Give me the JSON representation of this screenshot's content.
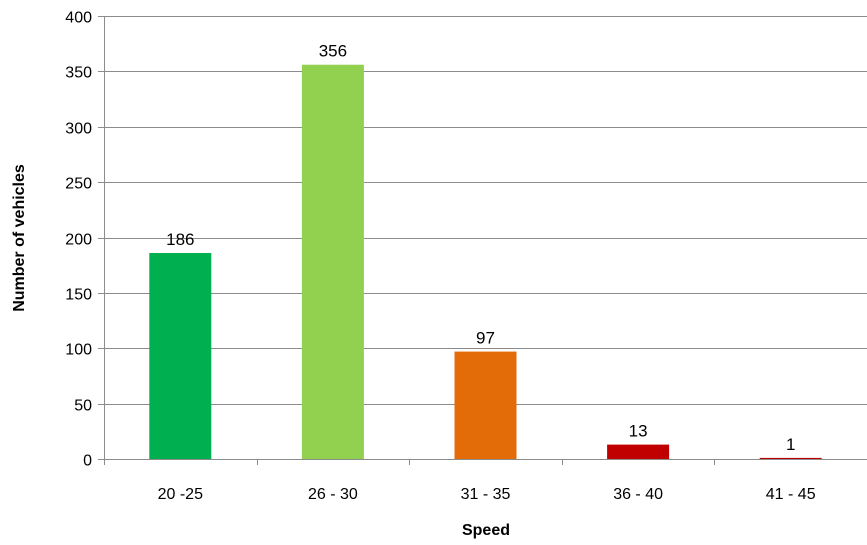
{
  "chart_data": {
    "type": "bar",
    "categories": [
      "20 -25",
      "26 - 30",
      "31 - 35",
      "36 - 40",
      "41 - 45"
    ],
    "values": [
      186,
      356,
      97,
      13,
      1
    ],
    "data_labels": [
      "186",
      "356",
      "97",
      "13",
      "1"
    ],
    "bar_colors": [
      "#00b050",
      "#92d050",
      "#e36c09",
      "#c00000",
      "#c00000"
    ],
    "xlabel": "Speed",
    "ylabel": "Number of vehicles",
    "ylim": [
      0,
      400
    ],
    "yticks": [
      0,
      50,
      100,
      150,
      200,
      250,
      300,
      350,
      400
    ],
    "ytick_labels": [
      "0",
      "50",
      "100",
      "150",
      "200",
      "250",
      "300",
      "350",
      "400"
    ],
    "grid": true,
    "legend": "none"
  }
}
